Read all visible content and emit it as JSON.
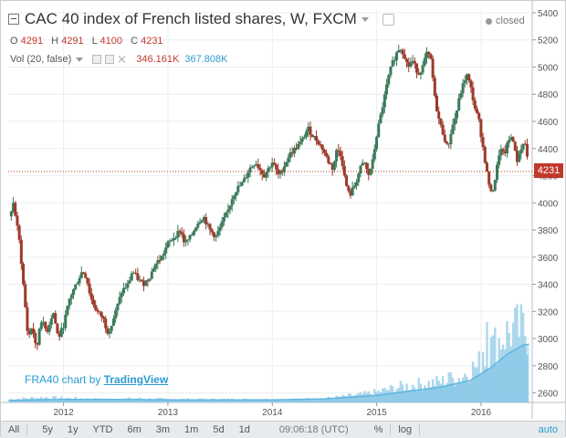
{
  "header": {
    "title": "CAC 40 index of French listed shares, W, FXCM",
    "status": "closed"
  },
  "ohlc": {
    "o_label": "O",
    "o": "4291",
    "h_label": "H",
    "h": "4291",
    "l_label": "L",
    "l": "4100",
    "c_label": "C",
    "c": "4231"
  },
  "volume_indicator": {
    "label": "Vol (20, false)",
    "value1": "346.161K",
    "value2": "367.808K"
  },
  "branding": {
    "prefix": "FRA40 chart by",
    "link": "TradingView"
  },
  "last_price": "4231",
  "toolbar": {
    "ranges": [
      "All",
      "5y",
      "1y",
      "YTD",
      "6m",
      "3m",
      "1m",
      "5d",
      "1d"
    ],
    "clock": "09:06:18 (UTC)",
    "percent": "%",
    "log": "log",
    "auto": "auto"
  },
  "colors": {
    "up": "#3a7a5a",
    "down": "#9c3b2a",
    "price_line": "#c0392b",
    "volume": "#9fd0ea",
    "volume_ma": "#5cb5e0"
  },
  "chart_data": {
    "type": "candlestick",
    "y_ticks": [
      2600,
      2800,
      3000,
      3200,
      3400,
      3600,
      3800,
      4000,
      4200,
      4400,
      4600,
      4800,
      5000,
      5200,
      5400
    ],
    "ylim": [
      2530,
      5420
    ],
    "x_ticks": [
      {
        "label": "2012",
        "t": 2012
      },
      {
        "label": "2013",
        "t": 2013
      },
      {
        "label": "2014",
        "t": 2014
      },
      {
        "label": "2015",
        "t": 2015
      },
      {
        "label": "2016",
        "t": 2016
      }
    ],
    "xlim": [
      2011.47,
      2016.49
    ],
    "close_points": [
      [
        2011.48,
        3900
      ],
      [
        2011.52,
        4000
      ],
      [
        2011.58,
        3700
      ],
      [
        2011.62,
        3350
      ],
      [
        2011.66,
        3000
      ],
      [
        2011.7,
        3100
      ],
      [
        2011.74,
        2900
      ],
      [
        2011.78,
        3150
      ],
      [
        2011.84,
        3050
      ],
      [
        2011.9,
        3200
      ],
      [
        2011.95,
        3000
      ],
      [
        2012.0,
        3100
      ],
      [
        2012.06,
        3300
      ],
      [
        2012.12,
        3400
      ],
      [
        2012.18,
        3500
      ],
      [
        2012.22,
        3450
      ],
      [
        2012.26,
        3300
      ],
      [
        2012.32,
        3200
      ],
      [
        2012.38,
        3150
      ],
      [
        2012.42,
        3050
      ],
      [
        2012.46,
        3100
      ],
      [
        2012.5,
        3200
      ],
      [
        2012.56,
        3350
      ],
      [
        2012.62,
        3400
      ],
      [
        2012.66,
        3500
      ],
      [
        2012.7,
        3450
      ],
      [
        2012.76,
        3400
      ],
      [
        2012.82,
        3450
      ],
      [
        2012.88,
        3550
      ],
      [
        2012.94,
        3600
      ],
      [
        2013.0,
        3700
      ],
      [
        2013.06,
        3750
      ],
      [
        2013.12,
        3800
      ],
      [
        2013.16,
        3700
      ],
      [
        2013.22,
        3750
      ],
      [
        2013.28,
        3850
      ],
      [
        2013.34,
        3900
      ],
      [
        2013.4,
        3800
      ],
      [
        2013.46,
        3750
      ],
      [
        2013.52,
        3850
      ],
      [
        2013.58,
        3950
      ],
      [
        2013.62,
        4050
      ],
      [
        2013.66,
        4100
      ],
      [
        2013.72,
        4150
      ],
      [
        2013.78,
        4250
      ],
      [
        2013.84,
        4300
      ],
      [
        2013.88,
        4250
      ],
      [
        2013.92,
        4200
      ],
      [
        2013.96,
        4250
      ],
      [
        2014.0,
        4300
      ],
      [
        2014.06,
        4200
      ],
      [
        2014.1,
        4250
      ],
      [
        2014.16,
        4350
      ],
      [
        2014.22,
        4400
      ],
      [
        2014.28,
        4450
      ],
      [
        2014.34,
        4550
      ],
      [
        2014.38,
        4500
      ],
      [
        2014.44,
        4450
      ],
      [
        2014.48,
        4400
      ],
      [
        2014.54,
        4300
      ],
      [
        2014.58,
        4250
      ],
      [
        2014.62,
        4400
      ],
      [
        2014.66,
        4350
      ],
      [
        2014.7,
        4150
      ],
      [
        2014.74,
        4050
      ],
      [
        2014.8,
        4150
      ],
      [
        2014.84,
        4250
      ],
      [
        2014.88,
        4300
      ],
      [
        2014.92,
        4200
      ],
      [
        2014.96,
        4300
      ],
      [
        2015.0,
        4500
      ],
      [
        2015.04,
        4650
      ],
      [
        2015.08,
        4800
      ],
      [
        2015.12,
        4950
      ],
      [
        2015.16,
        5050
      ],
      [
        2015.22,
        5150
      ],
      [
        2015.26,
        5100
      ],
      [
        2015.3,
        5000
      ],
      [
        2015.34,
        5050
      ],
      [
        2015.4,
        4950
      ],
      [
        2015.44,
        5000
      ],
      [
        2015.48,
        5100
      ],
      [
        2015.52,
        5050
      ],
      [
        2015.56,
        4750
      ],
      [
        2015.6,
        4600
      ],
      [
        2015.64,
        4500
      ],
      [
        2015.68,
        4400
      ],
      [
        2015.72,
        4550
      ],
      [
        2015.76,
        4650
      ],
      [
        2015.8,
        4800
      ],
      [
        2015.86,
        4950
      ],
      [
        2015.9,
        4850
      ],
      [
        2015.94,
        4700
      ],
      [
        2015.98,
        4600
      ],
      [
        2016.02,
        4400
      ],
      [
        2016.06,
        4200
      ],
      [
        2016.1,
        4050
      ],
      [
        2016.14,
        4200
      ],
      [
        2016.18,
        4400
      ],
      [
        2016.22,
        4350
      ],
      [
        2016.26,
        4450
      ],
      [
        2016.3,
        4500
      ],
      [
        2016.34,
        4300
      ],
      [
        2016.38,
        4400
      ],
      [
        2016.42,
        4450
      ],
      [
        2016.46,
        4231
      ]
    ],
    "volume_points": [
      [
        2011.48,
        0.03
      ],
      [
        2011.8,
        0.05
      ],
      [
        2012.1,
        0.04
      ],
      [
        2012.4,
        0.03
      ],
      [
        2012.7,
        0.04
      ],
      [
        2013.0,
        0.03
      ],
      [
        2013.3,
        0.03
      ],
      [
        2013.6,
        0.03
      ],
      [
        2013.9,
        0.03
      ],
      [
        2014.2,
        0.03
      ],
      [
        2014.5,
        0.04
      ],
      [
        2014.8,
        0.07
      ],
      [
        2015.0,
        0.1
      ],
      [
        2015.2,
        0.15
      ],
      [
        2015.4,
        0.18
      ],
      [
        2015.6,
        0.2
      ],
      [
        2015.8,
        0.25
      ],
      [
        2016.0,
        0.4
      ],
      [
        2016.1,
        0.55
      ],
      [
        2016.2,
        0.65
      ],
      [
        2016.3,
        0.72
      ],
      [
        2016.4,
        0.72
      ],
      [
        2016.46,
        0.7
      ]
    ],
    "volume_ma_points": [
      [
        2011.48,
        0.02
      ],
      [
        2012.0,
        0.03
      ],
      [
        2012.5,
        0.03
      ],
      [
        2013.0,
        0.025
      ],
      [
        2013.5,
        0.025
      ],
      [
        2014.0,
        0.025
      ],
      [
        2014.5,
        0.035
      ],
      [
        2015.0,
        0.07
      ],
      [
        2015.3,
        0.11
      ],
      [
        2015.6,
        0.15
      ],
      [
        2015.9,
        0.22
      ],
      [
        2016.1,
        0.35
      ],
      [
        2016.25,
        0.48
      ],
      [
        2016.4,
        0.57
      ],
      [
        2016.46,
        0.58
      ]
    ],
    "volume_spikes": [
      [
        2016.02,
        0.5
      ],
      [
        2016.06,
        0.8
      ],
      [
        2016.1,
        0.65
      ],
      [
        2015.7,
        0.3
      ],
      [
        2015.95,
        0.35
      ]
    ]
  }
}
